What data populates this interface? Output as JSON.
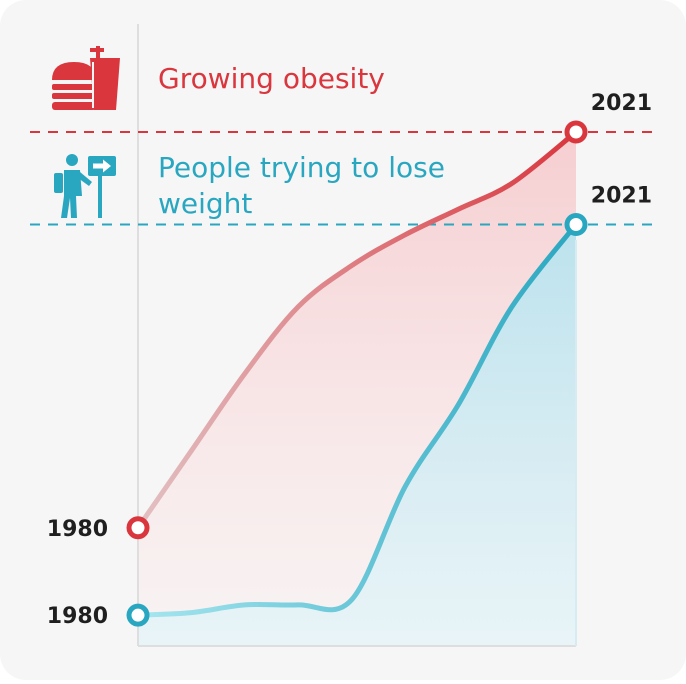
{
  "colors": {
    "obesity": "#d9363e",
    "weight_loss": "#2aa7c0",
    "background": "#f6f6f6"
  },
  "icons": {
    "obesity": "fast-food-icon",
    "weight_loss": "hiker-sign-icon"
  },
  "chart_data": {
    "type": "line",
    "title": "",
    "xlabel": "",
    "ylabel": "",
    "x": [
      1980,
      1985,
      1990,
      1995,
      2000,
      2005,
      2010,
      2015,
      2021
    ],
    "xlim": [
      1980,
      2021
    ],
    "ylim": [
      0,
      100
    ],
    "grid": false,
    "series": [
      {
        "name": "Growing obesity",
        "color": "#d9363e",
        "values": [
          23,
          38,
          53,
          66,
          74,
          80,
          85,
          90,
          100
        ],
        "start_label": "1980",
        "end_label": "2021"
      },
      {
        "name": "People trying to lose weight",
        "color": "#2aa7c0",
        "values": [
          6,
          6.5,
          8,
          8,
          9,
          31,
          47,
          66,
          82
        ],
        "start_label": "1980",
        "end_label": "2021"
      }
    ]
  }
}
